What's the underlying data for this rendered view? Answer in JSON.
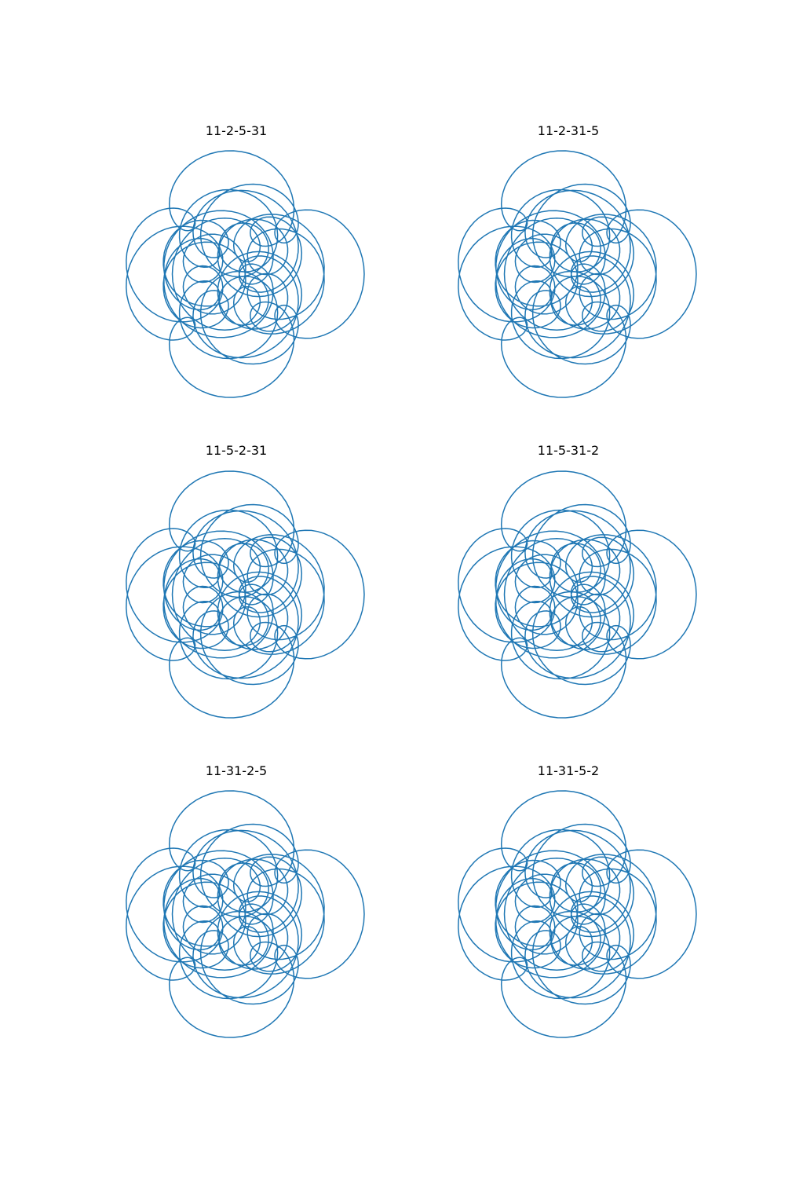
{
  "figure": {
    "background": "#ffffff",
    "line_color": "#1f77b4",
    "axes_visible": false
  },
  "chart_data": [
    {
      "type": "line",
      "title": "11-2-5-31",
      "frequencies": [
        11,
        2,
        5,
        31
      ],
      "grid": false,
      "axis": "off",
      "aspect": "equal"
    },
    {
      "type": "line",
      "title": "11-2-31-5",
      "frequencies": [
        11,
        2,
        31,
        5
      ],
      "grid": false,
      "axis": "off",
      "aspect": "equal"
    },
    {
      "type": "line",
      "title": "11-5-2-31",
      "frequencies": [
        11,
        5,
        2,
        31
      ],
      "grid": false,
      "axis": "off",
      "aspect": "equal"
    },
    {
      "type": "line",
      "title": "11-5-31-2",
      "frequencies": [
        11,
        5,
        31,
        2
      ],
      "grid": false,
      "axis": "off",
      "aspect": "equal"
    },
    {
      "type": "line",
      "title": "11-31-2-5",
      "frequencies": [
        11,
        31,
        2,
        5
      ],
      "grid": false,
      "axis": "off",
      "aspect": "equal"
    },
    {
      "type": "line",
      "title": "11-31-5-2",
      "frequencies": [
        11,
        31,
        5,
        2
      ],
      "grid": false,
      "axis": "off",
      "aspect": "equal"
    }
  ]
}
